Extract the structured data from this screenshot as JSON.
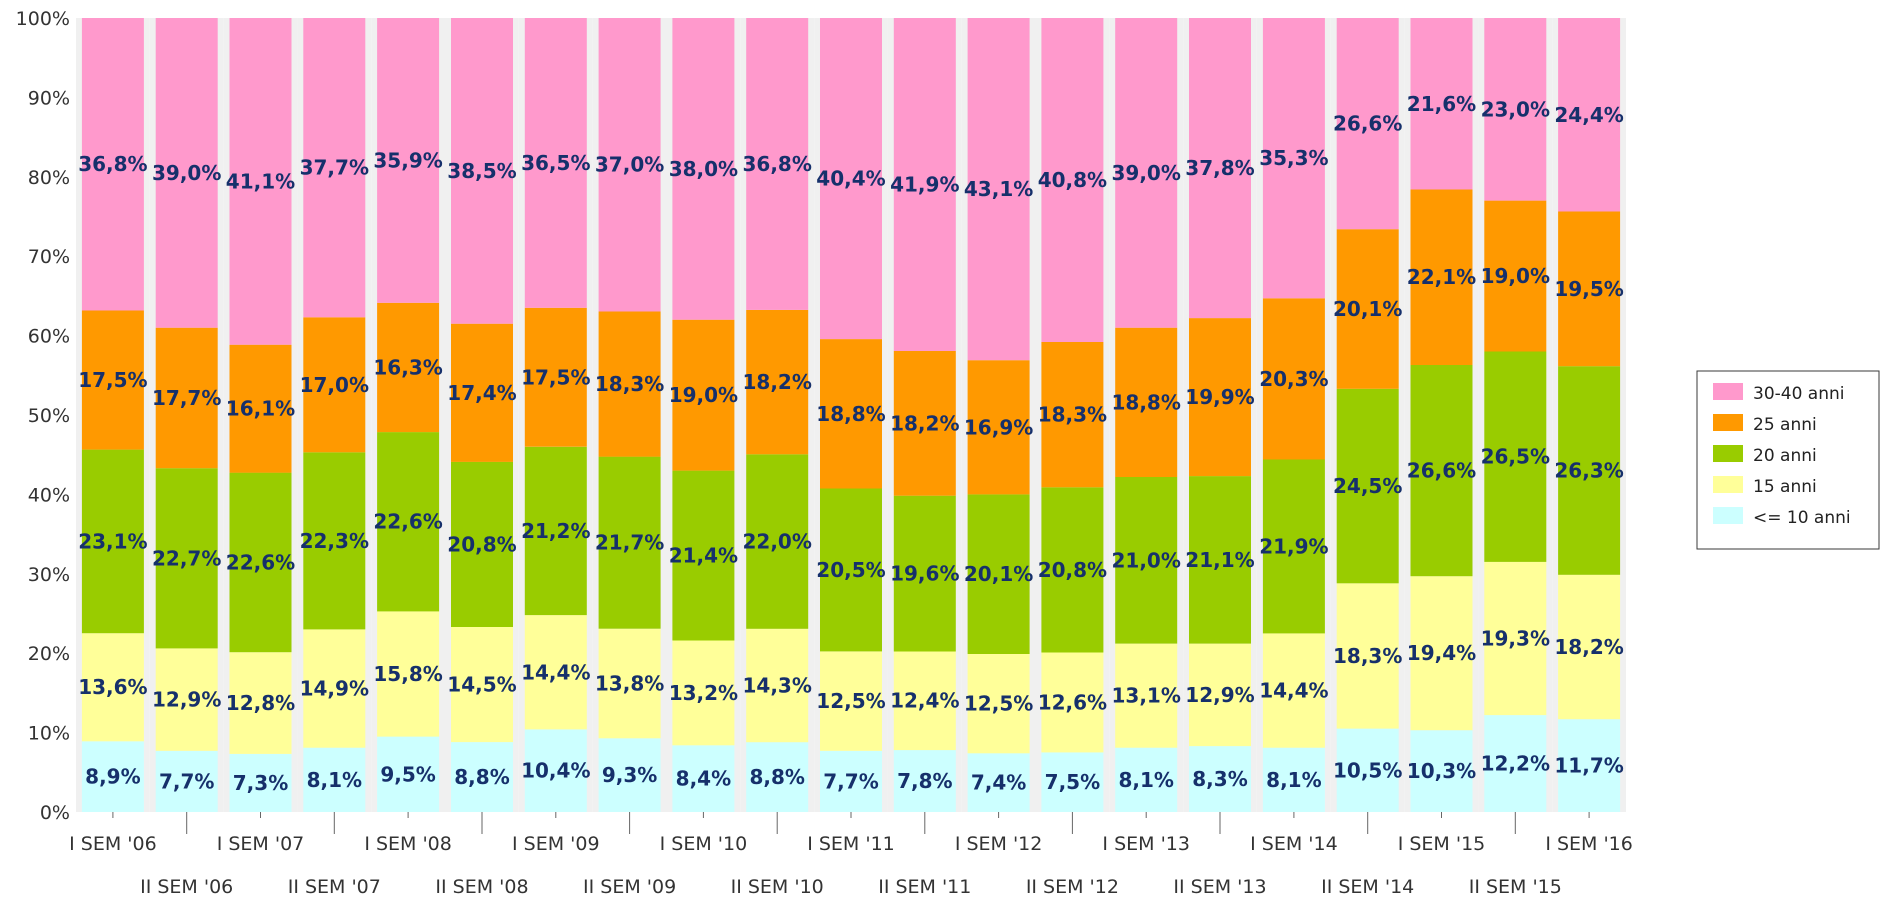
{
  "chart_data": {
    "type": "bar",
    "stacked": true,
    "percent": true,
    "categories": [
      "I SEM '06",
      "II SEM '06",
      "I SEM '07",
      "II SEM '07",
      "I SEM '08",
      "II SEM '08",
      "I SEM '09",
      "II SEM '09",
      "I SEM '10",
      "II SEM '10",
      "I SEM '11",
      "II SEM '11",
      "I SEM '12",
      "II SEM '12",
      "I SEM '13",
      "II SEM '13",
      "I SEM '14",
      "II SEM '14",
      "I SEM '15",
      "II SEM '15",
      "I SEM '16"
    ],
    "series": [
      {
        "name": "<= 10 anni",
        "color": "#ccffff",
        "values": [
          8.9,
          7.7,
          7.3,
          8.1,
          9.5,
          8.8,
          10.4,
          9.3,
          8.4,
          8.8,
          7.7,
          7.8,
          7.4,
          7.5,
          8.1,
          8.3,
          8.1,
          10.5,
          10.3,
          12.2,
          11.7
        ],
        "labels": [
          "8,9%",
          "7,7%",
          "7,3%",
          "8,1%",
          "9,5%",
          "8,8%",
          "10,4%",
          "9,3%",
          "8,4%",
          "8,8%",
          "7,7%",
          "7,8%",
          "7,4%",
          "7,5%",
          "8,1%",
          "8,3%",
          "8,1%",
          "10,5%",
          "10,3%",
          "12,2%",
          "11,7%"
        ]
      },
      {
        "name": "15 anni",
        "color": "#ffff99",
        "values": [
          13.6,
          12.9,
          12.8,
          14.9,
          15.8,
          14.5,
          14.4,
          13.8,
          13.2,
          14.3,
          12.5,
          12.4,
          12.5,
          12.6,
          13.1,
          12.9,
          14.4,
          18.3,
          19.4,
          19.3,
          18.2
        ],
        "labels": [
          "13,6%",
          "12,9%",
          "12,8%",
          "14,9%",
          "15,8%",
          "14,5%",
          "14,4%",
          "13,8%",
          "13,2%",
          "14,3%",
          "12,5%",
          "12,4%",
          "12,5%",
          "12,6%",
          "13,1%",
          "12,9%",
          "14,4%",
          "18,3%",
          "19,4%",
          "19,3%",
          "18,2%"
        ]
      },
      {
        "name": "20 anni",
        "color": "#99cc00",
        "values": [
          23.1,
          22.7,
          22.6,
          22.3,
          22.6,
          20.8,
          21.2,
          21.7,
          21.4,
          22.0,
          20.5,
          19.6,
          20.1,
          20.8,
          21.0,
          21.1,
          21.9,
          24.5,
          26.6,
          26.5,
          26.3
        ],
        "labels": [
          "23,1%",
          "22,7%",
          "22,6%",
          "22,3%",
          "22,6%",
          "20,8%",
          "21,2%",
          "21,7%",
          "21,4%",
          "22,0%",
          "20,5%",
          "19,6%",
          "20,1%",
          "20,8%",
          "21,0%",
          "21,1%",
          "21,9%",
          "24,5%",
          "26,6%",
          "26,5%",
          "26,3%"
        ]
      },
      {
        "name": "25 anni",
        "color": "#ff9900",
        "values": [
          17.5,
          17.7,
          16.1,
          17.0,
          16.3,
          17.4,
          17.5,
          18.3,
          19.0,
          18.2,
          18.8,
          18.2,
          16.9,
          18.3,
          18.8,
          19.9,
          20.3,
          20.1,
          22.1,
          19.0,
          19.5
        ],
        "labels": [
          "17,5%",
          "17,7%",
          "16,1%",
          "17,0%",
          "16,3%",
          "17,4%",
          "17,5%",
          "18,3%",
          "19,0%",
          "18,2%",
          "18,8%",
          "18,2%",
          "16,9%",
          "18,3%",
          "18,8%",
          "19,9%",
          "20,3%",
          "20,1%",
          "22,1%",
          "19,0%",
          "19,5%"
        ]
      },
      {
        "name": "30-40 anni",
        "color": "#ff99cc",
        "values": [
          36.8,
          39.0,
          41.1,
          37.7,
          35.9,
          38.5,
          36.5,
          37.0,
          38.0,
          36.8,
          40.4,
          41.9,
          43.1,
          40.8,
          39.0,
          37.8,
          35.3,
          26.6,
          21.6,
          23.0,
          24.4
        ],
        "labels": [
          "36,8%",
          "39,0%",
          "41,1%",
          "37,7%",
          "35,9%",
          "38,5%",
          "36,5%",
          "37,0%",
          "38,0%",
          "36,8%",
          "40,4%",
          "41,9%",
          "43,1%",
          "40,8%",
          "39,0%",
          "37,8%",
          "35,3%",
          "26,6%",
          "21,6%",
          "23,0%",
          "24,4%"
        ]
      }
    ],
    "yticks": [
      "0%",
      "10%",
      "20%",
      "30%",
      "40%",
      "50%",
      "60%",
      "70%",
      "80%",
      "90%",
      "100%"
    ],
    "ylim": [
      0,
      100
    ],
    "legend_order": [
      "30-40 anni",
      "25 anni",
      "20 anni",
      "15 anni",
      "<= 10 anni"
    ],
    "legend_position": "right",
    "grid": false,
    "band_color": "#f0f0f0"
  }
}
